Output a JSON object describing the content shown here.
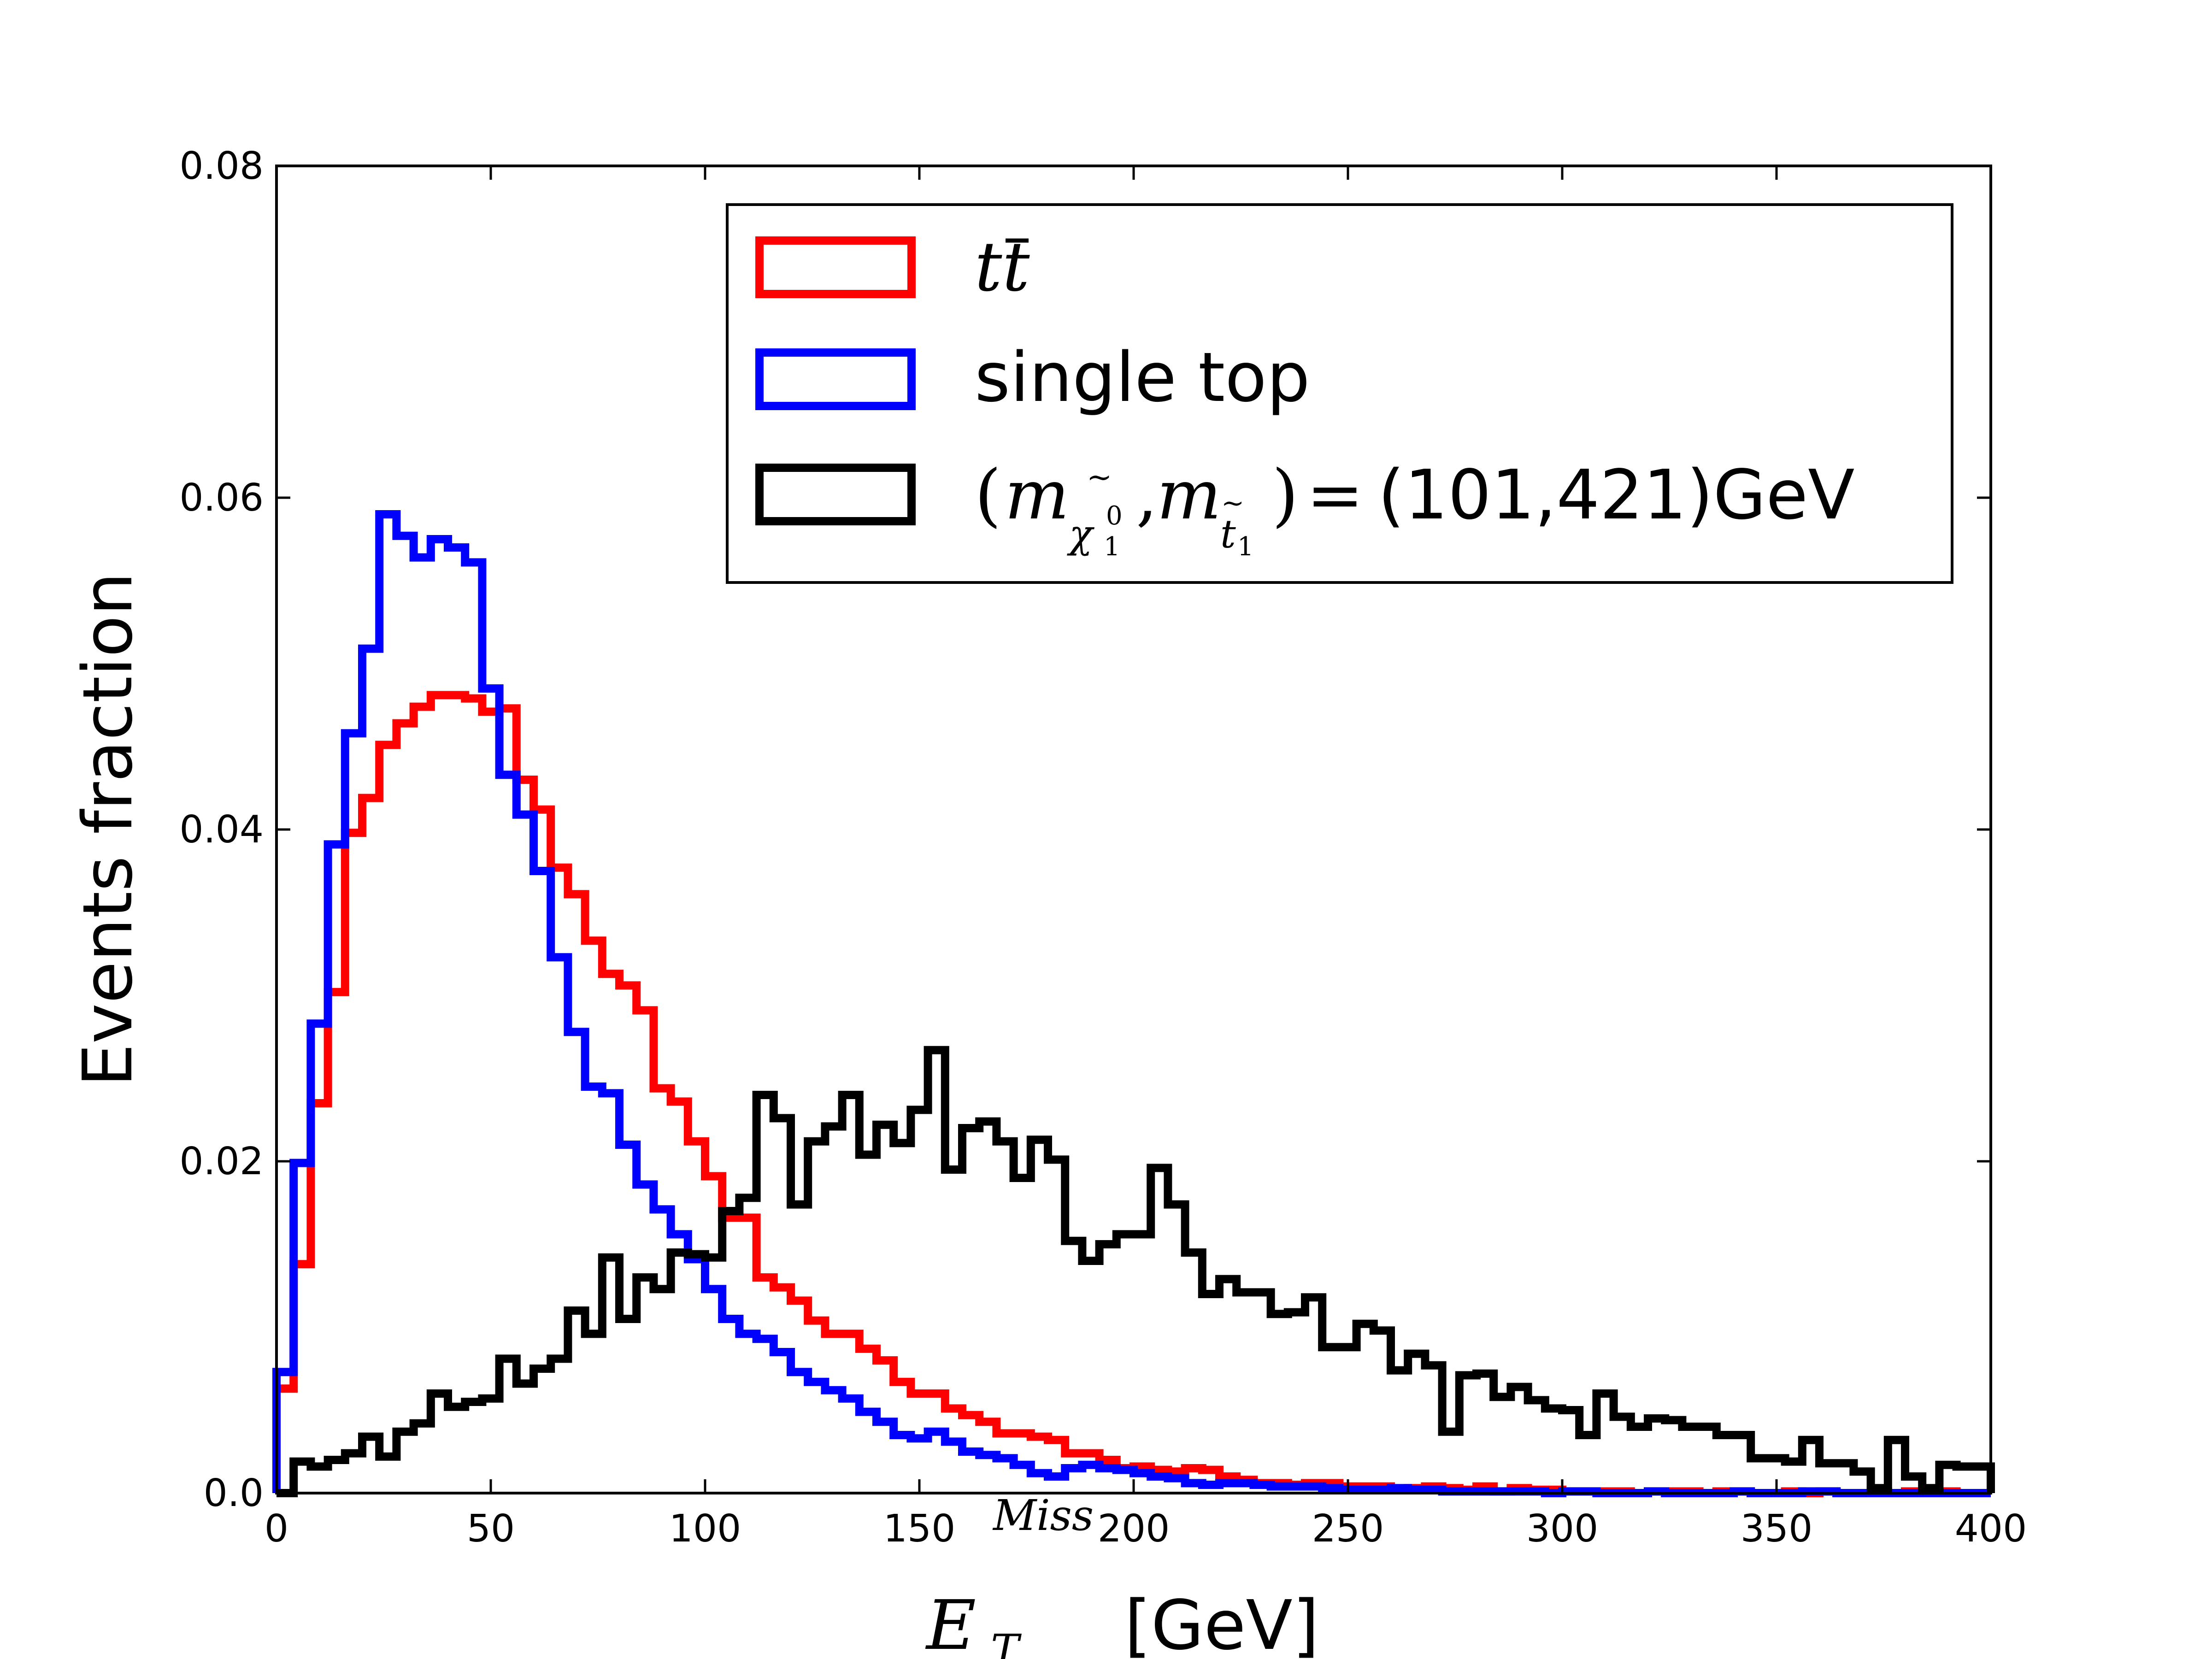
{
  "chart_data": {
    "type": "histogram",
    "title": "",
    "xlabel": {
      "symbol": "E",
      "sub": "T",
      "sup": "Miss",
      "unit": "[GeV]"
    },
    "ylabel": "Events fraction",
    "xlim": [
      0,
      400
    ],
    "ylim": [
      0,
      0.08
    ],
    "xticks": [
      "0",
      "50",
      "100",
      "150",
      "200",
      "250",
      "300",
      "350",
      "400"
    ],
    "yticks": [
      "0.0",
      "0.02",
      "0.04",
      "0.06",
      "0.08"
    ],
    "bin_width": 4,
    "legend_position": "upper right",
    "series": [
      {
        "name": "ttbar",
        "color": "#ff0000",
        "values": [
          0.0063,
          0.0138,
          0.0235,
          0.0302,
          0.0398,
          0.0419,
          0.0451,
          0.0464,
          0.0474,
          0.0481,
          0.0481,
          0.0479,
          0.0471,
          0.0473,
          0.043,
          0.0412,
          0.0377,
          0.0361,
          0.0333,
          0.0313,
          0.0306,
          0.0291,
          0.0244,
          0.0236,
          0.0212,
          0.0191,
          0.0166,
          0.0166,
          0.013,
          0.0124,
          0.0116,
          0.0104,
          0.0096,
          0.0096,
          0.0087,
          0.008,
          0.0067,
          0.006,
          0.006,
          0.0051,
          0.0047,
          0.0043,
          0.0036,
          0.0036,
          0.0034,
          0.0032,
          0.0024,
          0.0024,
          0.002,
          0.0015,
          0.0016,
          0.0014,
          0.0013,
          0.0015,
          0.0014,
          0.001,
          0.0008,
          0.0006,
          0.0006,
          0.0005,
          0.0006,
          0.0006,
          0.0004,
          0.0004,
          0.0004,
          0.0002,
          0.0003,
          0.0004,
          0.0003,
          0.0002,
          0.0004,
          0.0001,
          0.0003,
          0.0002,
          0.0002,
          0.0001,
          0.0001,
          0.0001,
          0.0001,
          0.0,
          0.0001,
          0.0001,
          0.0001,
          0.0,
          0.0001,
          0.0001,
          0.0,
          0.0,
          0.0001,
          0.0,
          0.0001,
          0.0,
          0.0,
          0.0001,
          0.0,
          0.0001,
          0.0,
          0.0001,
          0.0,
          0.0
        ]
      },
      {
        "name": "single top",
        "color": "#0000ff",
        "values": [
          0.0073,
          0.0199,
          0.0283,
          0.0391,
          0.0458,
          0.0509,
          0.059,
          0.0577,
          0.0564,
          0.0575,
          0.057,
          0.0561,
          0.0485,
          0.0433,
          0.0409,
          0.0375,
          0.0323,
          0.0278,
          0.0245,
          0.0241,
          0.021,
          0.0186,
          0.0171,
          0.0156,
          0.0141,
          0.0123,
          0.0105,
          0.0096,
          0.0093,
          0.0085,
          0.0073,
          0.0067,
          0.0062,
          0.0057,
          0.0049,
          0.0043,
          0.0035,
          0.0033,
          0.0037,
          0.0031,
          0.0025,
          0.0023,
          0.0021,
          0.0017,
          0.0012,
          0.001,
          0.0015,
          0.0017,
          0.0015,
          0.0014,
          0.0012,
          0.001,
          0.0009,
          0.0006,
          0.0005,
          0.0006,
          0.0006,
          0.0005,
          0.0004,
          0.0004,
          0.0004,
          0.0003,
          0.0002,
          0.0002,
          0.0002,
          0.0003,
          0.0002,
          0.0002,
          0.0001,
          0.0001,
          0.0001,
          0.0001,
          0.0001,
          0.0001,
          0.0,
          0.0001,
          0.0001,
          0.0,
          0.0,
          0.0,
          0.0001,
          0.0,
          0.0,
          0.0,
          0.0,
          0.0001,
          0.0,
          0.0,
          0.0,
          0.0001,
          0.0001,
          0.0,
          0.0,
          0.0,
          0.0,
          0.0,
          0.0,
          0.0,
          0.0,
          0.0
        ]
      },
      {
        "name": "(m_chi10, m_t1) = (101,421) GeV",
        "color": "#000000",
        "values": [
          0.0,
          0.0019,
          0.0016,
          0.002,
          0.0024,
          0.0034,
          0.0022,
          0.0037,
          0.0042,
          0.006,
          0.0052,
          0.0055,
          0.0057,
          0.0081,
          0.0066,
          0.0075,
          0.0081,
          0.011,
          0.0096,
          0.0142,
          0.0105,
          0.013,
          0.0123,
          0.0145,
          0.0144,
          0.0142,
          0.017,
          0.0178,
          0.024,
          0.0226,
          0.0174,
          0.0212,
          0.0221,
          0.024,
          0.0204,
          0.0222,
          0.0211,
          0.0231,
          0.0267,
          0.0195,
          0.022,
          0.0224,
          0.0212,
          0.019,
          0.0213,
          0.0201,
          0.0152,
          0.014,
          0.015,
          0.0156,
          0.0156,
          0.0196,
          0.0174,
          0.0145,
          0.012,
          0.0129,
          0.0121,
          0.0121,
          0.0108,
          0.0109,
          0.0118,
          0.0088,
          0.0088,
          0.0102,
          0.0098,
          0.0074,
          0.0084,
          0.0077,
          0.0037,
          0.0071,
          0.0072,
          0.0058,
          0.0064,
          0.0056,
          0.0051,
          0.005,
          0.0035,
          0.006,
          0.0046,
          0.004,
          0.0045,
          0.0044,
          0.004,
          0.004,
          0.0035,
          0.0035,
          0.0021,
          0.0021,
          0.0019,
          0.0032,
          0.0018,
          0.0018,
          0.0013,
          0.0003,
          0.0032,
          0.001,
          0.0003,
          0.0017,
          0.0016,
          0.0016
        ]
      }
    ]
  },
  "legend": {
    "ttbar": {
      "t1": "t",
      "t2": "t"
    },
    "single_top": "single top",
    "signal": {
      "open": "(",
      "m": "m",
      "chi": "χ",
      "chi_sub": "1",
      "chi_sup": "0",
      "comma": ",",
      "t": "t",
      "t_sub": "1",
      "close": ")",
      "eq": "=",
      "value": "(101,421)GeV"
    }
  }
}
